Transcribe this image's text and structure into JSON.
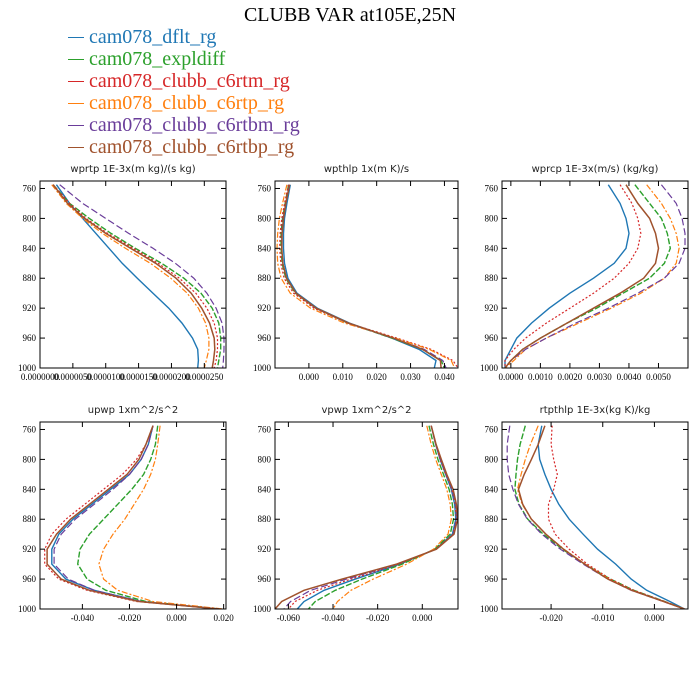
{
  "figure": {
    "title": "CLUBB VAR at105E,25N"
  },
  "legend": [
    {
      "name": "cam078_dflt_rg",
      "color": "#1f77b4"
    },
    {
      "name": "cam078_expldiff",
      "color": "#2ca02c"
    },
    {
      "name": "cam078_clubb_c6rtm_rg",
      "color": "#d62728"
    },
    {
      "name": "cam078_clubb_c6rtp_rg",
      "color": "#ff7f0e"
    },
    {
      "name": "cam078_clubb_c6rtbm_rg",
      "color": "#6a3d9a"
    },
    {
      "name": "cam078_clubb_c6rtbp_rg",
      "color": "#a0522d"
    }
  ],
  "chart_data": [
    {
      "type": "line",
      "title": "wprtp  1E-3x(m kg)/(s kg)",
      "xlim": [
        0,
        2.83e-05
      ],
      "ylim": [
        1000,
        750
      ],
      "xticks": [
        0,
        5e-06,
        1e-05,
        1.5e-05,
        2e-05,
        2.5e-05
      ],
      "xtick_labels": [
        "0.0000000",
        "0.0000050",
        "0.0000100",
        "0.0000150",
        "0.0000200",
        "0.0000250"
      ],
      "yticks": [
        760,
        800,
        840,
        880,
        920,
        960,
        1000
      ],
      "y": [
        755,
        780,
        800,
        820,
        840,
        860,
        880,
        900,
        920,
        940,
        960,
        975,
        990,
        1000
      ],
      "series": [
        {
          "values": [
            2.5e-06,
            4.5e-06,
            6.5e-06,
            8.5e-06,
            1.05e-05,
            1.25e-05,
            1.48e-05,
            1.72e-05,
            1.96e-05,
            2.16e-05,
            2.32e-05,
            2.4e-05,
            2.41e-05,
            2.4e-05
          ]
        },
        {
          "values": [
            2e-06,
            4.5e-06,
            7.5e-06,
            1.08e-05,
            1.45e-05,
            1.85e-05,
            2.19e-05,
            2.45e-05,
            2.62e-05,
            2.72e-05,
            2.75e-05,
            2.75e-05,
            2.72e-05,
            2.7e-05
          ]
        },
        {
          "values": [
            2e-06,
            4.5e-06,
            7e-06,
            1.03e-05,
            1.42e-05,
            1.8e-05,
            2.12e-05,
            2.37e-05,
            2.54e-05,
            2.65e-05,
            2.7e-05,
            2.7e-05,
            2.68e-05,
            2.65e-05
          ]
        },
        {
          "values": [
            1.8e-06,
            4e-06,
            6.5e-06,
            9.5e-06,
            1.3e-05,
            1.68e-05,
            1.99e-05,
            2.24e-05,
            2.41e-05,
            2.52e-05,
            2.57e-05,
            2.57e-05,
            2.53e-05,
            2.5e-05
          ]
        },
        {
          "values": [
            3e-06,
            6.5e-06,
            1e-05,
            1.35e-05,
            1.72e-05,
            2.06e-05,
            2.34e-05,
            2.54e-05,
            2.68e-05,
            2.77e-05,
            2.8e-05,
            2.8e-05,
            2.79e-05,
            2.78e-05
          ]
        },
        {
          "values": [
            2e-06,
            4.2e-06,
            6.8e-06,
            1e-05,
            1.38e-05,
            1.76e-05,
            2.07e-05,
            2.3e-05,
            2.46e-05,
            2.58e-05,
            2.65e-05,
            2.66e-05,
            2.64e-05,
            2.62e-05
          ]
        }
      ]
    },
    {
      "type": "line",
      "title": "wpthlp  1x(m K)/s",
      "xlim": [
        -0.01,
        0.044
      ],
      "ylim": [
        1000,
        750
      ],
      "xticks": [
        0,
        0.01,
        0.02,
        0.03,
        0.04
      ],
      "xtick_labels": [
        "0.000",
        "0.010",
        "0.020",
        "0.030",
        "0.040"
      ],
      "yticks": [
        760,
        800,
        840,
        880,
        920,
        960,
        1000
      ],
      "y": [
        755,
        780,
        800,
        820,
        840,
        860,
        880,
        900,
        920,
        940,
        960,
        975,
        990,
        1000
      ],
      "series": [
        {
          "values": [
            -0.0055,
            -0.0065,
            -0.0072,
            -0.0075,
            -0.0075,
            -0.0072,
            -0.0062,
            -0.0035,
            0.0025,
            0.012,
            0.0245,
            0.0325,
            0.0375,
            0.037
          ]
        },
        {
          "values": [
            -0.006,
            -0.007,
            -0.0078,
            -0.0082,
            -0.0082,
            -0.0079,
            -0.0068,
            -0.004,
            0.002,
            0.0115,
            0.0245,
            0.0335,
            0.039,
            0.04
          ]
        },
        {
          "values": [
            -0.006,
            -0.0072,
            -0.008,
            -0.0085,
            -0.0086,
            -0.0083,
            -0.0073,
            -0.0045,
            0.0015,
            0.0115,
            0.026,
            0.036,
            0.0425,
            0.044
          ]
        },
        {
          "values": [
            -0.0065,
            -0.0078,
            -0.0087,
            -0.0092,
            -0.0094,
            -0.0092,
            -0.0082,
            -0.0055,
            0.0005,
            0.0105,
            0.0255,
            0.0355,
            0.042,
            0.043
          ]
        },
        {
          "values": [
            -0.0058,
            -0.0068,
            -0.0076,
            -0.008,
            -0.008,
            -0.0077,
            -0.0066,
            -0.0038,
            0.002,
            0.0115,
            0.0248,
            0.034,
            0.0395,
            0.0405
          ]
        },
        {
          "values": [
            -0.0057,
            -0.0068,
            -0.0075,
            -0.0079,
            -0.008,
            -0.0077,
            -0.0066,
            -0.0038,
            0.0022,
            0.0117,
            0.025,
            0.0335,
            0.0388,
            0.039
          ]
        }
      ]
    },
    {
      "type": "line",
      "title": "wprcp  1E-3x(m/s) (kg/kg)",
      "xlim": [
        -0.0003,
        0.006
      ],
      "ylim": [
        1000,
        750
      ],
      "xticks": [
        0,
        0.001,
        0.002,
        0.003,
        0.004,
        0.005
      ],
      "xtick_labels": [
        "0.0000",
        "0.0010",
        "0.0020",
        "0.0030",
        "0.0040",
        "0.0050"
      ],
      "yticks": [
        760,
        800,
        840,
        880,
        920,
        960,
        1000
      ],
      "y": [
        755,
        780,
        800,
        820,
        840,
        860,
        880,
        900,
        920,
        940,
        960,
        975,
        990,
        1000
      ],
      "series": [
        {
          "values": [
            0.0033,
            0.0037,
            0.0039,
            0.004,
            0.0039,
            0.0035,
            0.0028,
            0.002,
            0.0013,
            0.0007,
            0.0002,
            0,
            -0.0002,
            -0.0002
          ]
        },
        {
          "values": [
            0.0042,
            0.0047,
            0.0051,
            0.0053,
            0.0054,
            0.0052,
            0.0047,
            0.0038,
            0.0029,
            0.0019,
            0.001,
            0.0004,
            0,
            -0.0002
          ]
        },
        {
          "values": [
            0.0037,
            0.0041,
            0.0043,
            0.0044,
            0.0043,
            0.004,
            0.0035,
            0.0028,
            0.002,
            0.0012,
            0.0005,
            0.0001,
            -0.0002,
            -0.0002
          ]
        },
        {
          "values": [
            0.0046,
            0.0051,
            0.0054,
            0.0056,
            0.0057,
            0.0056,
            0.0052,
            0.0044,
            0.0034,
            0.0023,
            0.0012,
            0.0005,
            0.0001,
            -0.0002
          ]
        },
        {
          "values": [
            0.0051,
            0.0056,
            0.0058,
            0.0059,
            0.0059,
            0.0057,
            0.0052,
            0.0043,
            0.0033,
            0.0022,
            0.0012,
            0.0005,
            0,
            -0.0002
          ]
        },
        {
          "values": [
            0.0039,
            0.0043,
            0.0047,
            0.0049,
            0.005,
            0.0049,
            0.0045,
            0.0037,
            0.0028,
            0.0019,
            0.001,
            0.0004,
            0,
            -0.0002
          ]
        }
      ]
    },
    {
      "type": "line",
      "title": "upwp  1xm^2/s^2",
      "xlim": [
        -0.058,
        0.021
      ],
      "ylim": [
        1000,
        750
      ],
      "xticks": [
        -0.04,
        -0.02,
        0,
        0.02
      ],
      "xtick_labels": [
        "-0.040",
        "-0.020",
        "0.000",
        "0.020"
      ],
      "yticks": [
        760,
        800,
        840,
        880,
        920,
        960,
        1000
      ],
      "y": [
        755,
        780,
        800,
        820,
        840,
        860,
        880,
        900,
        920,
        940,
        960,
        975,
        990,
        1000
      ],
      "series": [
        {
          "values": [
            -0.01,
            -0.012,
            -0.015,
            -0.02,
            -0.028,
            -0.036,
            -0.044,
            -0.05,
            -0.053,
            -0.053,
            -0.047,
            -0.035,
            -0.015,
            0.018
          ]
        },
        {
          "values": [
            -0.008,
            -0.009,
            -0.011,
            -0.014,
            -0.019,
            -0.025,
            -0.031,
            -0.037,
            -0.041,
            -0.042,
            -0.038,
            -0.03,
            -0.013,
            0.018
          ]
        },
        {
          "values": [
            -0.01,
            -0.013,
            -0.017,
            -0.023,
            -0.031,
            -0.039,
            -0.047,
            -0.053,
            -0.056,
            -0.056,
            -0.05,
            -0.038,
            -0.017,
            0.019
          ]
        },
        {
          "values": [
            -0.007,
            -0.008,
            -0.009,
            -0.011,
            -0.014,
            -0.018,
            -0.022,
            -0.027,
            -0.031,
            -0.033,
            -0.031,
            -0.025,
            -0.01,
            0.02
          ]
        },
        {
          "values": [
            -0.01,
            -0.012,
            -0.015,
            -0.02,
            -0.027,
            -0.035,
            -0.043,
            -0.049,
            -0.052,
            -0.052,
            -0.046,
            -0.035,
            -0.015,
            0.018
          ]
        },
        {
          "values": [
            -0.01,
            -0.013,
            -0.016,
            -0.021,
            -0.029,
            -0.037,
            -0.045,
            -0.051,
            -0.055,
            -0.055,
            -0.049,
            -0.037,
            -0.016,
            0.018
          ]
        }
      ]
    },
    {
      "type": "line",
      "title": "vpwp  1xm^2/s^2",
      "xlim": [
        -0.066,
        0.016
      ],
      "ylim": [
        1000,
        750
      ],
      "xticks": [
        -0.06,
        -0.04,
        -0.02,
        0
      ],
      "xtick_labels": [
        "-0.060",
        "-0.040",
        "-0.020",
        "0.000"
      ],
      "yticks": [
        760,
        800,
        840,
        880,
        920,
        960,
        1000
      ],
      "y": [
        755,
        780,
        800,
        820,
        840,
        860,
        880,
        900,
        920,
        940,
        960,
        975,
        990,
        1000
      ],
      "series": [
        {
          "values": [
            0.004,
            0.006,
            0.008,
            0.0105,
            0.013,
            0.0145,
            0.015,
            0.0135,
            0.006,
            -0.01,
            -0.03,
            -0.044,
            -0.053,
            -0.056
          ]
        },
        {
          "values": [
            0.003,
            0.005,
            0.007,
            0.0095,
            0.012,
            0.0135,
            0.014,
            0.0125,
            0.0055,
            -0.009,
            -0.027,
            -0.039,
            -0.048,
            -0.051
          ]
        },
        {
          "values": [
            0.004,
            0.006,
            0.008,
            0.0105,
            0.0132,
            0.0148,
            0.0153,
            0.0138,
            0.006,
            -0.0105,
            -0.032,
            -0.047,
            -0.057,
            -0.06
          ]
        },
        {
          "values": [
            0.002,
            0.004,
            0.006,
            0.0085,
            0.011,
            0.0125,
            0.013,
            0.0115,
            0.005,
            -0.007,
            -0.022,
            -0.032,
            -0.038,
            -0.04
          ]
        },
        {
          "values": [
            0.004,
            0.006,
            0.0082,
            0.0108,
            0.0135,
            0.015,
            0.0155,
            0.014,
            0.0062,
            -0.011,
            -0.034,
            -0.05,
            -0.059,
            -0.062
          ]
        },
        {
          "values": [
            0.004,
            0.0062,
            0.0085,
            0.011,
            0.0138,
            0.0153,
            0.0158,
            0.0142,
            0.0063,
            -0.0115,
            -0.036,
            -0.053,
            -0.063,
            -0.066
          ]
        }
      ]
    },
    {
      "type": "line",
      "title": "rtpthlp  1E-3x(kg K)/kg",
      "xlim": [
        -0.0295,
        0.0065
      ],
      "ylim": [
        1000,
        750
      ],
      "xticks": [
        -0.02,
        -0.01,
        0
      ],
      "xtick_labels": [
        "-0.020",
        "-0.010",
        "0.000"
      ],
      "yticks": [
        760,
        800,
        840,
        880,
        920,
        960,
        1000
      ],
      "y": [
        755,
        780,
        800,
        820,
        840,
        860,
        880,
        900,
        920,
        940,
        960,
        975,
        990,
        1000
      ],
      "series": [
        {
          "values": [
            -0.0218,
            -0.0225,
            -0.0222,
            -0.0212,
            -0.02,
            -0.0185,
            -0.0165,
            -0.0138,
            -0.011,
            -0.0075,
            -0.0045,
            -0.0015,
            0.003,
            0.0058
          ]
        },
        {
          "values": [
            -0.025,
            -0.026,
            -0.0265,
            -0.0268,
            -0.027,
            -0.0262,
            -0.0245,
            -0.0215,
            -0.0178,
            -0.0135,
            -0.0085,
            -0.004,
            0.002,
            0.0058
          ]
        },
        {
          "values": [
            -0.0198,
            -0.02,
            -0.0195,
            -0.0188,
            -0.0195,
            -0.0205,
            -0.0205,
            -0.0192,
            -0.0165,
            -0.013,
            -0.0085,
            -0.004,
            0.002,
            0.0058
          ]
        },
        {
          "values": [
            -0.0225,
            -0.024,
            -0.025,
            -0.0258,
            -0.0265,
            -0.0256,
            -0.0238,
            -0.021,
            -0.0175,
            -0.0134,
            -0.0088,
            -0.0043,
            0.0018,
            0.0058
          ]
        },
        {
          "values": [
            -0.028,
            -0.0285,
            -0.0285,
            -0.0282,
            -0.0274,
            -0.0263,
            -0.0246,
            -0.0218,
            -0.0182,
            -0.0138,
            -0.009,
            -0.0045,
            0.0017,
            0.0058
          ]
        },
        {
          "values": [
            -0.0212,
            -0.0225,
            -0.0238,
            -0.0252,
            -0.0263,
            -0.0255,
            -0.0238,
            -0.021,
            -0.0176,
            -0.0135,
            -0.009,
            -0.0044,
            0.0018,
            0.0058
          ]
        }
      ]
    }
  ]
}
